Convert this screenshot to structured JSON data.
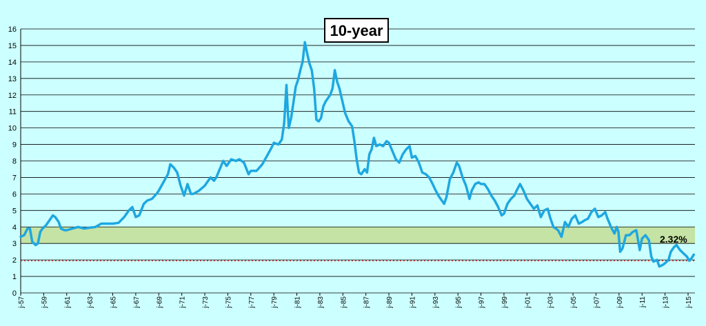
{
  "chart_data": {
    "type": "line",
    "title": "10-year",
    "xlabel": "",
    "ylabel": "",
    "ylim": [
      0,
      16
    ],
    "yticks": [
      "0",
      "1",
      "2",
      "3",
      "4",
      "5",
      "6",
      "7",
      "8",
      "9",
      "10",
      "11",
      "12",
      "13",
      "14",
      "15",
      "16"
    ],
    "xticks": [
      {
        "label": "j-57",
        "year": 1957
      },
      {
        "label": "j-59",
        "year": 1959
      },
      {
        "label": "j-61",
        "year": 1961
      },
      {
        "label": "j-63",
        "year": 1963
      },
      {
        "label": "j-65",
        "year": 1965
      },
      {
        "label": "j-67",
        "year": 1967
      },
      {
        "label": "j-69",
        "year": 1969
      },
      {
        "label": "j-71",
        "year": 1971
      },
      {
        "label": "j-73",
        "year": 1973
      },
      {
        "label": "j-75",
        "year": 1975
      },
      {
        "label": "j-77",
        "year": 1977
      },
      {
        "label": "j-79",
        "year": 1979
      },
      {
        "label": "j-81",
        "year": 1981
      },
      {
        "label": "j-83",
        "year": 1983
      },
      {
        "label": "j-85",
        "year": 1985
      },
      {
        "label": "j-87",
        "year": 1987
      },
      {
        "label": "j-89",
        "year": 1989
      },
      {
        "label": "j-91",
        "year": 1991
      },
      {
        "label": "j-93",
        "year": 1993
      },
      {
        "label": "j-95",
        "year": 1995
      },
      {
        "label": "j-97",
        "year": 1997
      },
      {
        "label": "j-99",
        "year": 1999
      },
      {
        "label": "j-01",
        "year": 2001
      },
      {
        "label": "j-03",
        "year": 2003
      },
      {
        "label": "j-05",
        "year": 2005
      },
      {
        "label": "j-07",
        "year": 2007
      },
      {
        "label": "j-09",
        "year": 2009
      },
      {
        "label": "j-11",
        "year": 2011
      },
      {
        "label": "j-13",
        "year": 2013
      },
      {
        "label": "j-15",
        "year": 2015
      }
    ],
    "xlim": [
      1957,
      2015.6
    ],
    "grid": true,
    "shaded_band": {
      "from": 3,
      "to": 4,
      "color": "#c4e3a4"
    },
    "reference_line": {
      "y": 1.95,
      "color": "#e83a3a",
      "style": "dotted"
    },
    "series": [
      {
        "color": "#1ea7e1",
        "x": [
          1957.0,
          1957.3,
          1957.6,
          1957.8,
          1958.0,
          1958.3,
          1958.5,
          1958.7,
          1958.9,
          1959.2,
          1959.5,
          1959.8,
          1960.0,
          1960.3,
          1960.5,
          1960.8,
          1961.0,
          1961.5,
          1962.0,
          1962.5,
          1963.0,
          1963.5,
          1964.0,
          1964.5,
          1965.0,
          1965.5,
          1966.0,
          1966.4,
          1966.7,
          1967.0,
          1967.3,
          1967.7,
          1968.0,
          1968.4,
          1968.8,
          1969.0,
          1969.4,
          1969.8,
          1970.0,
          1970.3,
          1970.6,
          1970.9,
          1971.2,
          1971.5,
          1971.8,
          1972.0,
          1972.5,
          1973.0,
          1973.5,
          1973.8,
          1974.0,
          1974.3,
          1974.6,
          1974.9,
          1975.3,
          1975.7,
          1976.0,
          1976.4,
          1976.8,
          1977.0,
          1977.5,
          1978.0,
          1978.4,
          1978.8,
          1979.0,
          1979.4,
          1979.7,
          1979.9,
          1980.1,
          1980.2,
          1980.3,
          1980.5,
          1980.7,
          1980.9,
          1981.1,
          1981.3,
          1981.5,
          1981.7,
          1981.9,
          1982.1,
          1982.3,
          1982.5,
          1982.7,
          1982.9,
          1983.1,
          1983.3,
          1983.5,
          1983.7,
          1983.9,
          1984.1,
          1984.3,
          1984.5,
          1984.7,
          1984.9,
          1985.2,
          1985.5,
          1985.8,
          1986.0,
          1986.2,
          1986.4,
          1986.6,
          1986.9,
          1987.1,
          1987.3,
          1987.5,
          1987.7,
          1987.9,
          1988.2,
          1988.5,
          1988.8,
          1989.0,
          1989.3,
          1989.6,
          1989.9,
          1990.2,
          1990.5,
          1990.8,
          1991.0,
          1991.3,
          1991.6,
          1991.9,
          1992.2,
          1992.5,
          1992.8,
          1993.0,
          1993.3,
          1993.6,
          1993.8,
          1994.0,
          1994.3,
          1994.6,
          1994.9,
          1995.1,
          1995.4,
          1995.7,
          1996.0,
          1996.2,
          1996.5,
          1996.8,
          1997.0,
          1997.3,
          1997.6,
          1997.9,
          1998.2,
          1998.5,
          1998.8,
          1999.0,
          1999.3,
          1999.6,
          1999.9,
          2000.1,
          2000.4,
          2000.7,
          2001.0,
          2001.3,
          2001.6,
          2001.9,
          2002.2,
          2002.5,
          2002.8,
          2003.0,
          2003.3,
          2003.5,
          2003.7,
          2004.0,
          2004.3,
          2004.6,
          2004.9,
          2005.2,
          2005.5,
          2005.8,
          2006.0,
          2006.3,
          2006.6,
          2006.9,
          2007.2,
          2007.5,
          2007.8,
          2008.0,
          2008.3,
          2008.6,
          2008.8,
          2008.95,
          2009.1,
          2009.3,
          2009.6,
          2009.9,
          2010.2,
          2010.5,
          2010.8,
          2011.0,
          2011.3,
          2011.6,
          2011.8,
          2012.0,
          2012.3,
          2012.5,
          2012.8,
          2013.0,
          2013.3,
          2013.5,
          2013.8,
          2014.0,
          2014.3,
          2014.6,
          2014.9,
          2015.1,
          2015.3,
          2015.5
        ],
        "y": [
          3.4,
          3.5,
          3.9,
          3.9,
          3.1,
          2.9,
          3.0,
          3.7,
          3.9,
          4.1,
          4.4,
          4.7,
          4.6,
          4.3,
          3.9,
          3.8,
          3.8,
          3.9,
          4.0,
          3.9,
          3.95,
          4.0,
          4.2,
          4.2,
          4.2,
          4.25,
          4.6,
          5.0,
          5.2,
          4.6,
          4.7,
          5.4,
          5.6,
          5.7,
          6.0,
          6.2,
          6.7,
          7.2,
          7.8,
          7.6,
          7.3,
          6.5,
          5.9,
          6.6,
          6.0,
          6.0,
          6.2,
          6.5,
          7.0,
          6.8,
          7.0,
          7.5,
          8.0,
          7.7,
          8.1,
          8.0,
          8.1,
          7.9,
          7.2,
          7.4,
          7.4,
          7.8,
          8.3,
          8.8,
          9.1,
          9.0,
          9.3,
          10.3,
          12.6,
          11.2,
          10.0,
          10.6,
          11.5,
          12.5,
          12.9,
          13.5,
          14.0,
          15.2,
          14.5,
          13.9,
          13.5,
          12.4,
          10.5,
          10.4,
          10.6,
          11.3,
          11.6,
          11.8,
          12.0,
          12.4,
          13.5,
          12.8,
          12.4,
          11.8,
          10.9,
          10.4,
          10.1,
          9.2,
          8.1,
          7.3,
          7.2,
          7.5,
          7.3,
          8.4,
          8.7,
          9.4,
          8.9,
          9.0,
          8.9,
          9.2,
          9.1,
          8.6,
          8.1,
          7.9,
          8.4,
          8.7,
          8.9,
          8.2,
          8.3,
          7.9,
          7.3,
          7.2,
          7.0,
          6.6,
          6.3,
          5.9,
          5.6,
          5.4,
          5.8,
          6.9,
          7.3,
          7.9,
          7.7,
          7.0,
          6.5,
          5.7,
          6.2,
          6.6,
          6.7,
          6.6,
          6.6,
          6.3,
          5.9,
          5.6,
          5.2,
          4.7,
          4.8,
          5.4,
          5.7,
          5.9,
          6.2,
          6.6,
          6.2,
          5.7,
          5.4,
          5.1,
          5.3,
          4.6,
          5.0,
          5.1,
          4.6,
          4.0,
          3.9,
          3.8,
          3.4,
          4.3,
          4.0,
          4.5,
          4.7,
          4.2,
          4.3,
          4.4,
          4.5,
          4.9,
          5.1,
          4.6,
          4.7,
          4.9,
          4.5,
          4.0,
          3.6,
          4.0,
          3.7,
          2.5,
          2.7,
          3.5,
          3.5,
          3.7,
          3.8,
          2.6,
          3.3,
          3.5,
          3.2,
          2.2,
          1.9,
          2.0,
          1.6,
          1.7,
          1.8,
          2.0,
          2.5,
          2.8,
          2.9,
          2.6,
          2.4,
          2.2,
          1.95,
          2.1,
          2.32
        ]
      }
    ],
    "annotations": [
      {
        "text": "2.32%"
      }
    ]
  }
}
